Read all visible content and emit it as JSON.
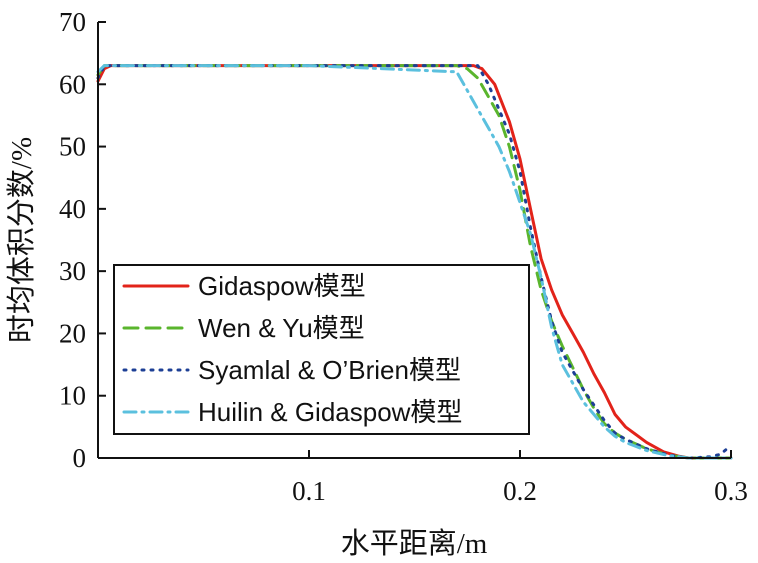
{
  "chart_data": {
    "type": "line",
    "title": "",
    "xlabel": "水平距离/m",
    "ylabel": "时均体积分数/%",
    "xlim": [
      0,
      0.3
    ],
    "ylim": [
      0,
      70
    ],
    "xticks": [
      0.1,
      0.2,
      0.3
    ],
    "xtick_labels": [
      "0.1",
      "0.2",
      "0.3"
    ],
    "yticks": [
      0,
      10,
      20,
      30,
      40,
      50,
      60,
      70
    ],
    "ytick_labels": [
      "0",
      "10",
      "20",
      "30",
      "40",
      "50",
      "60",
      "70"
    ],
    "grid": false,
    "legend_position": "bottom-left",
    "series": [
      {
        "name": "Gidaspow模型",
        "color": "#e2231a",
        "dash": "solid",
        "x": [
          0.0,
          0.003,
          0.006,
          0.02,
          0.1,
          0.17,
          0.178,
          0.182,
          0.188,
          0.195,
          0.2,
          0.205,
          0.21,
          0.215,
          0.22,
          0.225,
          0.23,
          0.235,
          0.24,
          0.245,
          0.25,
          0.26,
          0.268,
          0.275,
          0.28,
          0.29,
          0.3
        ],
        "y": [
          60.5,
          62.5,
          63,
          63,
          63,
          63,
          63,
          62.5,
          60,
          54,
          48,
          40,
          32,
          27,
          23,
          20,
          17,
          13.5,
          10.5,
          7,
          5,
          2.5,
          1,
          0.3,
          0,
          0,
          0
        ]
      },
      {
        "name": "Wen & Yu模型",
        "color": "#5ab52d",
        "dash": "dashed",
        "x": [
          0.0,
          0.003,
          0.006,
          0.02,
          0.1,
          0.17,
          0.175,
          0.18,
          0.185,
          0.19,
          0.195,
          0.2,
          0.205,
          0.21,
          0.215,
          0.22,
          0.225,
          0.23,
          0.235,
          0.24,
          0.245,
          0.25,
          0.26,
          0.27,
          0.28,
          0.29,
          0.3
        ],
        "y": [
          61.5,
          63,
          63,
          63,
          63,
          63,
          62.5,
          61,
          58,
          55,
          50,
          43,
          34,
          27,
          22,
          18,
          14.5,
          11,
          8,
          5.5,
          4,
          3,
          1.5,
          0.5,
          0,
          0,
          0
        ]
      },
      {
        "name": "Syamlal & O’Brien模型",
        "color": "#1d3f95",
        "dash": "dotted",
        "x": [
          0.0,
          0.003,
          0.006,
          0.02,
          0.1,
          0.175,
          0.18,
          0.185,
          0.19,
          0.195,
          0.2,
          0.205,
          0.21,
          0.215,
          0.22,
          0.225,
          0.23,
          0.235,
          0.24,
          0.245,
          0.25,
          0.26,
          0.27,
          0.28,
          0.29,
          0.295,
          0.3
        ],
        "y": [
          61,
          63,
          63,
          63,
          63,
          63,
          63,
          60,
          56,
          52,
          46,
          37,
          29,
          22,
          17,
          14,
          11,
          8.5,
          6,
          4,
          3,
          1.5,
          0.5,
          0,
          0.2,
          0.6,
          2
        ]
      },
      {
        "name": "Huilin & Gidaspow模型",
        "color": "#5bc0de",
        "dash": "dashdot",
        "x": [
          0.0,
          0.003,
          0.006,
          0.02,
          0.1,
          0.17,
          0.175,
          0.18,
          0.185,
          0.19,
          0.195,
          0.2,
          0.205,
          0.21,
          0.215,
          0.22,
          0.225,
          0.23,
          0.235,
          0.24,
          0.245,
          0.25,
          0.26,
          0.27,
          0.28,
          0.29,
          0.3
        ],
        "y": [
          62,
          63,
          63,
          63,
          63,
          62,
          59,
          56,
          53,
          50,
          46,
          41,
          36,
          29,
          21,
          15,
          12,
          9,
          7,
          5,
          3.5,
          2.5,
          1.2,
          0.4,
          0,
          0,
          0
        ]
      }
    ]
  }
}
